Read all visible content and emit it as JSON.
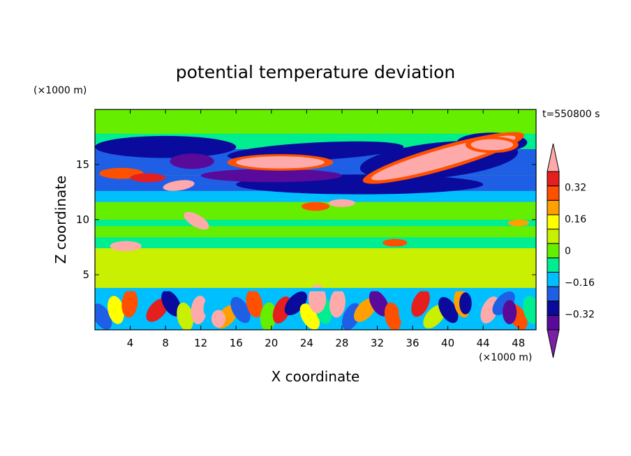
{
  "chart_data": {
    "type": "heatmap",
    "title": "potential temperature deviation",
    "xlabel": "X coordinate",
    "ylabel": "Z coordinate",
    "x_unit": "(×1000 m)",
    "z_unit": "(×1000 m)",
    "time_label": "t=550800 s",
    "xlim": [
      0,
      50
    ],
    "ylim": [
      0,
      20
    ],
    "x_ticks": [
      4,
      8,
      12,
      16,
      20,
      24,
      28,
      32,
      36,
      40,
      44,
      48
    ],
    "y_ticks": [
      5,
      10,
      15
    ],
    "colorbar": {
      "levels": [
        -0.48,
        -0.4,
        -0.32,
        -0.24,
        -0.16,
        -0.08,
        0,
        0.08,
        0.16,
        0.24,
        0.32,
        0.4,
        0.48
      ],
      "labels": [
        0.32,
        0.16,
        0,
        -0.16,
        -0.32
      ],
      "label_text": [
        "0.32",
        "0.16",
        "0",
        "−0.16",
        "−0.32"
      ],
      "colors": [
        "#7b1fa6",
        "#5a0a9a",
        "#0a0a9c",
        "#1f5fe6",
        "#00bfff",
        "#00ee90",
        "#66ee00",
        "#c8f000",
        "#ffff00",
        "#ffa000",
        "#ff5000",
        "#e51e1e",
        "#ffaaaa"
      ]
    }
  }
}
